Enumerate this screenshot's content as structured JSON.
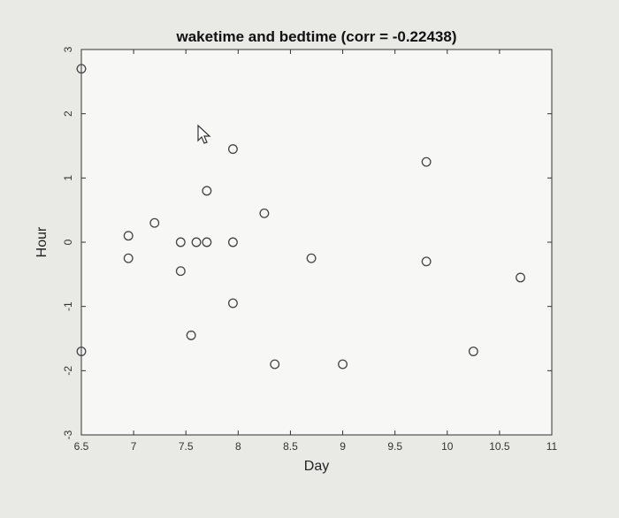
{
  "chart_data": {
    "type": "scatter",
    "title": "waketime and bedtime (corr = -0.22438)",
    "xlabel": "Day",
    "ylabel": "Hour",
    "xlim": [
      6.5,
      11
    ],
    "ylim": [
      -3,
      3
    ],
    "xticks": [
      "6.5",
      "7",
      "7.5",
      "8",
      "8.5",
      "9",
      "9.5",
      "10",
      "10.5",
      "11"
    ],
    "yticks": [
      "-3",
      "-2",
      "-1",
      "0",
      "1",
      "2",
      "3"
    ],
    "grid": false,
    "points": [
      {
        "x": 6.5,
        "y": 2.7
      },
      {
        "x": 6.5,
        "y": -1.7
      },
      {
        "x": 6.95,
        "y": 0.1
      },
      {
        "x": 6.95,
        "y": -0.25
      },
      {
        "x": 7.2,
        "y": 0.3
      },
      {
        "x": 7.45,
        "y": 0.0
      },
      {
        "x": 7.45,
        "y": -0.45
      },
      {
        "x": 7.55,
        "y": -1.45
      },
      {
        "x": 7.6,
        "y": 0.0
      },
      {
        "x": 7.7,
        "y": 0.8
      },
      {
        "x": 7.7,
        "y": 0.0
      },
      {
        "x": 7.95,
        "y": 1.45
      },
      {
        "x": 7.95,
        "y": 0.0
      },
      {
        "x": 7.95,
        "y": -0.95
      },
      {
        "x": 8.25,
        "y": 0.45
      },
      {
        "x": 8.35,
        "y": -1.9
      },
      {
        "x": 8.7,
        "y": -0.25
      },
      {
        "x": 9.0,
        "y": -1.9
      },
      {
        "x": 9.8,
        "y": 1.25
      },
      {
        "x": 9.8,
        "y": -0.3
      },
      {
        "x": 10.25,
        "y": -1.7
      },
      {
        "x": 10.7,
        "y": -0.55
      }
    ]
  },
  "ui": {
    "cursor": "pointer-arrow-icon"
  }
}
